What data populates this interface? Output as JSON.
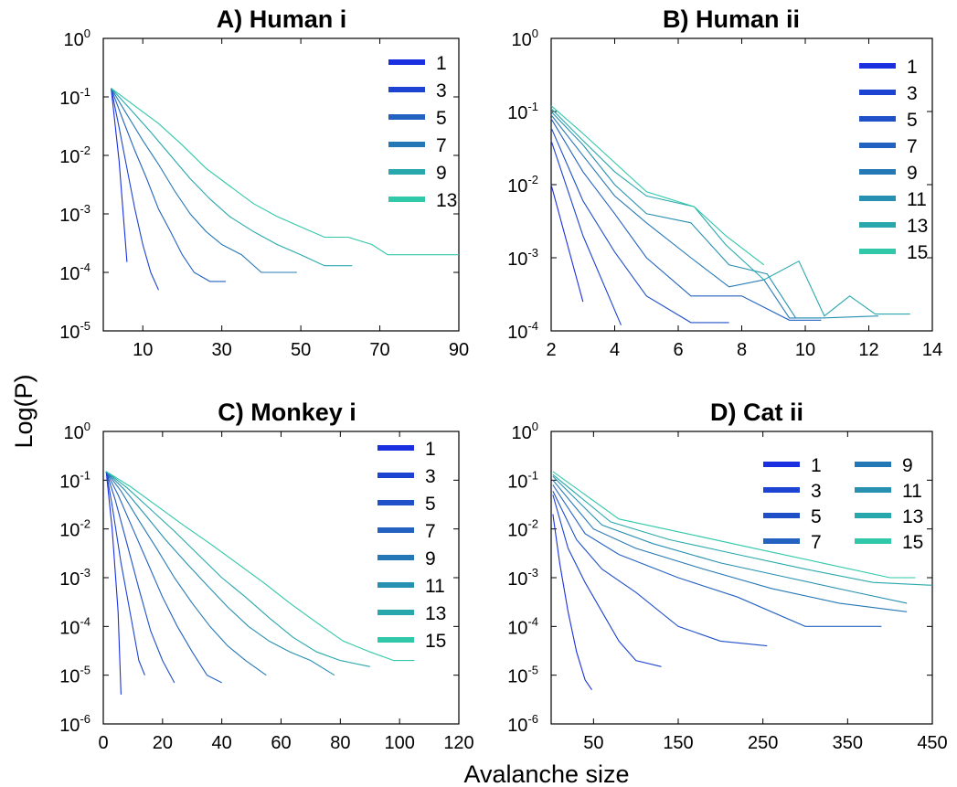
{
  "figure": {
    "ylabel": "Log(P)",
    "xlabel": "Avalanche size"
  },
  "chart_data": [
    {
      "type": "line",
      "title": "A) Human i",
      "xscale": "linear",
      "yscale": "log",
      "xlim": [
        0,
        90
      ],
      "ylim": [
        1e-05,
        1
      ],
      "xticks": [
        10,
        30,
        50,
        70,
        90
      ],
      "yticks": [
        0,
        -1,
        -2,
        -3,
        -4,
        -5
      ],
      "legend_position": "top-right",
      "series": [
        {
          "name": "1",
          "x": [
            2,
            4,
            6
          ],
          "y": [
            0.14,
            0.008,
            0.00015
          ]
        },
        {
          "name": "3",
          "x": [
            2,
            4,
            6,
            8,
            10,
            12,
            14
          ],
          "y": [
            0.14,
            0.03,
            0.006,
            0.0012,
            0.0003,
            0.0001,
            5e-05
          ]
        },
        {
          "name": "5",
          "x": [
            2,
            5,
            8,
            11,
            14,
            17,
            20,
            23,
            27,
            31
          ],
          "y": [
            0.14,
            0.04,
            0.012,
            0.004,
            0.0012,
            0.0005,
            0.0002,
            0.0001,
            7e-05,
            7e-05
          ]
        },
        {
          "name": "7",
          "x": [
            2,
            6,
            10,
            14,
            18,
            22,
            26,
            30,
            35,
            40,
            49
          ],
          "y": [
            0.14,
            0.05,
            0.018,
            0.007,
            0.0025,
            0.001,
            0.0005,
            0.0003,
            0.0002,
            0.0001,
            0.0001
          ]
        },
        {
          "name": "9",
          "x": [
            2,
            7,
            12,
            17,
            22,
            27,
            32,
            38,
            44,
            50,
            56,
            63
          ],
          "y": [
            0.14,
            0.06,
            0.025,
            0.01,
            0.004,
            0.0018,
            0.0009,
            0.0005,
            0.0003,
            0.0002,
            0.00013,
            0.00013
          ]
        },
        {
          "name": "13",
          "x": [
            2,
            8,
            14,
            20,
            26,
            32,
            38,
            44,
            50,
            56,
            62,
            68,
            72,
            90
          ],
          "y": [
            0.14,
            0.07,
            0.035,
            0.015,
            0.006,
            0.003,
            0.0015,
            0.0009,
            0.0006,
            0.0004,
            0.0004,
            0.0003,
            0.0002,
            0.0002
          ]
        }
      ]
    },
    {
      "type": "line",
      "title": "B) Human ii",
      "xscale": "linear",
      "yscale": "log",
      "xlim": [
        2,
        14
      ],
      "ylim": [
        0.0001,
        1
      ],
      "xticks": [
        2,
        4,
        6,
        8,
        10,
        12,
        14
      ],
      "yticks": [
        0,
        -1,
        -2,
        -3,
        -4
      ],
      "legend_position": "top-right",
      "series": [
        {
          "name": "1",
          "x": [
            2,
            3
          ],
          "y": [
            0.01,
            0.00025
          ]
        },
        {
          "name": "3",
          "x": [
            2,
            3,
            4.2
          ],
          "y": [
            0.04,
            0.002,
            0.00012
          ]
        },
        {
          "name": "5",
          "x": [
            2,
            3,
            4,
            5,
            6.4,
            7.6
          ],
          "y": [
            0.06,
            0.006,
            0.0012,
            0.0003,
            0.00013,
            0.00013
          ]
        },
        {
          "name": "7",
          "x": [
            2,
            3,
            4,
            5,
            6.4,
            8,
            9.5,
            10.5
          ],
          "y": [
            0.08,
            0.015,
            0.004,
            0.001,
            0.0003,
            0.0003,
            0.00014,
            0.00014
          ]
        },
        {
          "name": "9",
          "x": [
            2,
            3,
            4,
            5,
            6.4,
            7.6,
            8.7,
            9.5,
            10.5
          ],
          "y": [
            0.09,
            0.025,
            0.007,
            0.003,
            0.001,
            0.0004,
            0.0005,
            0.00015,
            0.00015
          ]
        },
        {
          "name": "11",
          "x": [
            2,
            3,
            4,
            5,
            6.4,
            7.6,
            8.8,
            9.7,
            10.5,
            12.3
          ],
          "y": [
            0.1,
            0.035,
            0.01,
            0.004,
            0.003,
            0.0008,
            0.0006,
            0.00015,
            0.00015,
            0.00016
          ]
        },
        {
          "name": "13",
          "x": [
            2,
            3,
            4,
            5,
            6.5,
            7.5,
            8.7,
            9.8,
            10.6,
            11.4,
            12.2,
            13.3
          ],
          "y": [
            0.11,
            0.04,
            0.015,
            0.007,
            0.005,
            0.0015,
            0.0005,
            0.0009,
            0.00016,
            0.0003,
            0.00017,
            0.00017
          ]
        },
        {
          "name": "15",
          "x": [
            2,
            3,
            4,
            5,
            6.5,
            7.5,
            8.7
          ],
          "y": [
            0.12,
            0.05,
            0.02,
            0.008,
            0.005,
            0.002,
            0.0008
          ]
        }
      ]
    },
    {
      "type": "line",
      "title": "C) Monkey i",
      "xscale": "linear",
      "yscale": "log",
      "xlim": [
        0,
        120
      ],
      "ylim": [
        1e-06,
        1
      ],
      "xticks": [
        0,
        20,
        40,
        60,
        80,
        100,
        120
      ],
      "yticks": [
        0,
        -1,
        -2,
        -3,
        -4,
        -5,
        -6
      ],
      "legend_position": "top-right",
      "series": [
        {
          "name": "1",
          "x": [
            1,
            3,
            5,
            6
          ],
          "y": [
            0.15,
            0.01,
            0.0002,
            4e-06
          ]
        },
        {
          "name": "3",
          "x": [
            1,
            3,
            6,
            9,
            12,
            14
          ],
          "y": [
            0.15,
            0.03,
            0.002,
            0.0002,
            2e-05,
            1e-05
          ]
        },
        {
          "name": "5",
          "x": [
            1,
            4,
            8,
            12,
            16,
            20,
            24
          ],
          "y": [
            0.15,
            0.04,
            0.005,
            0.0006,
            8e-05,
            2e-05,
            7e-06
          ]
        },
        {
          "name": "7",
          "x": [
            1,
            5,
            10,
            15,
            20,
            25,
            30,
            35,
            40
          ],
          "y": [
            0.15,
            0.05,
            0.01,
            0.002,
            0.0004,
            0.0001,
            3e-05,
            1e-05,
            7e-06
          ]
        },
        {
          "name": "9",
          "x": [
            1,
            6,
            12,
            18,
            24,
            30,
            36,
            42,
            48,
            55
          ],
          "y": [
            0.15,
            0.06,
            0.015,
            0.004,
            0.001,
            0.0003,
            0.0001,
            4e-05,
            2e-05,
            1e-05
          ]
        },
        {
          "name": "11",
          "x": [
            1,
            7,
            14,
            21,
            28,
            35,
            42,
            49,
            56,
            63,
            70,
            78
          ],
          "y": [
            0.15,
            0.065,
            0.02,
            0.006,
            0.002,
            0.0007,
            0.00025,
            0.0001,
            5e-05,
            3e-05,
            2e-05,
            1e-05
          ]
        },
        {
          "name": "13",
          "x": [
            1,
            8,
            16,
            24,
            32,
            40,
            48,
            56,
            64,
            72,
            80,
            90
          ],
          "y": [
            0.15,
            0.07,
            0.025,
            0.009,
            0.003,
            0.001,
            0.0004,
            0.00015,
            6e-05,
            3e-05,
            2e-05,
            1.5e-05
          ]
        },
        {
          "name": "15",
          "x": [
            1,
            9,
            18,
            27,
            36,
            45,
            54,
            63,
            72,
            81,
            90,
            98,
            105
          ],
          "y": [
            0.15,
            0.075,
            0.03,
            0.012,
            0.005,
            0.002,
            0.0008,
            0.0003,
            0.00012,
            5e-05,
            3e-05,
            2e-05,
            2e-05
          ]
        }
      ]
    },
    {
      "type": "line",
      "title": "D) Cat ii",
      "xscale": "linear",
      "yscale": "log",
      "xlim": [
        0,
        450
      ],
      "ylim": [
        1e-06,
        1
      ],
      "xticks": [
        50,
        150,
        250,
        350,
        450
      ],
      "yticks": [
        0,
        -1,
        -2,
        -3,
        -4,
        -5,
        -6
      ],
      "legend_position": "top-right",
      "series": [
        {
          "name": "1",
          "x": [
            2,
            10,
            20,
            30,
            40,
            48
          ],
          "y": [
            0.02,
            0.002,
            0.0002,
            3e-05,
            8e-06,
            5e-06
          ]
        },
        {
          "name": "3",
          "x": [
            2,
            20,
            40,
            60,
            80,
            100,
            130
          ],
          "y": [
            0.05,
            0.004,
            0.0008,
            0.0002,
            5e-05,
            2e-05,
            1.5e-05
          ]
        },
        {
          "name": "5",
          "x": [
            2,
            30,
            60,
            100,
            150,
            200,
            255
          ],
          "y": [
            0.06,
            0.006,
            0.0015,
            0.0005,
            0.0001,
            5e-05,
            4e-05
          ]
        },
        {
          "name": "7",
          "x": [
            2,
            40,
            80,
            150,
            220,
            300,
            390
          ],
          "y": [
            0.08,
            0.008,
            0.003,
            0.001,
            0.0004,
            0.0001,
            0.0001
          ]
        },
        {
          "name": "9",
          "x": [
            2,
            50,
            100,
            180,
            260,
            340,
            420
          ],
          "y": [
            0.1,
            0.01,
            0.004,
            0.0015,
            0.0006,
            0.0003,
            0.0002
          ]
        },
        {
          "name": "11",
          "x": [
            2,
            60,
            120,
            200,
            280,
            360,
            420
          ],
          "y": [
            0.12,
            0.012,
            0.005,
            0.002,
            0.001,
            0.0005,
            0.0003
          ]
        },
        {
          "name": "13",
          "x": [
            2,
            70,
            140,
            220,
            300,
            380,
            450
          ],
          "y": [
            0.13,
            0.014,
            0.006,
            0.003,
            0.0015,
            0.0008,
            0.0007
          ]
        },
        {
          "name": "15",
          "x": [
            2,
            80,
            160,
            240,
            320,
            400,
            430
          ],
          "y": [
            0.15,
            0.016,
            0.008,
            0.004,
            0.002,
            0.001,
            0.001
          ]
        }
      ]
    }
  ],
  "colors": {
    "palette": [
      "#1a2fe0",
      "#1d43d2",
      "#2050c8",
      "#2362c0",
      "#2578b6",
      "#2790b0",
      "#28a8ac",
      "#30c8a8"
    ],
    "line_palette_A": [
      "#1e3ad6",
      "#2046c8",
      "#2352bc",
      "#2460b4",
      "#2470ae",
      "#2690aa"
    ],
    "line_palette_B": [
      "#1a2fe0",
      "#2040c8",
      "#2350bc",
      "#2560b4",
      "#2670ae",
      "#2888aa",
      "#28a8b0",
      "#30c8b0"
    ]
  }
}
